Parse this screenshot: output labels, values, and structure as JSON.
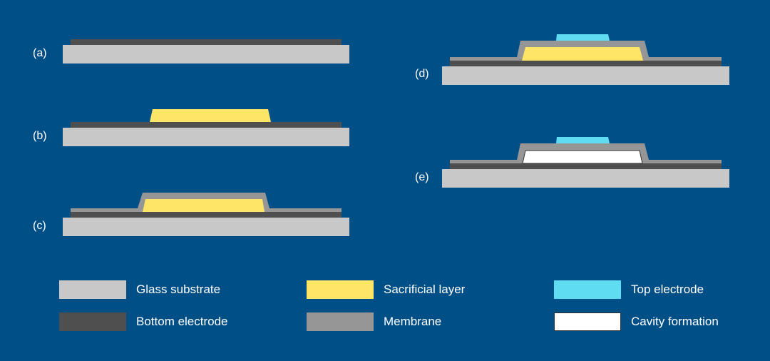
{
  "steps": [
    {
      "label": "(a)"
    },
    {
      "label": "(b)"
    },
    {
      "label": "(c)"
    },
    {
      "label": "(d)"
    },
    {
      "label": "(e)"
    }
  ],
  "legend": [
    {
      "label": "Glass substrate",
      "color": "#c8c8c8"
    },
    {
      "label": "Sacrificial layer",
      "color": "#ffe566"
    },
    {
      "label": "Top electrode",
      "color": "#5fdcef"
    },
    {
      "label": "Bottom electrode",
      "color": "#4f4f4f"
    },
    {
      "label": "Membrane",
      "color": "#969696"
    },
    {
      "label": "Cavity formation",
      "color": "#ffffff"
    }
  ]
}
